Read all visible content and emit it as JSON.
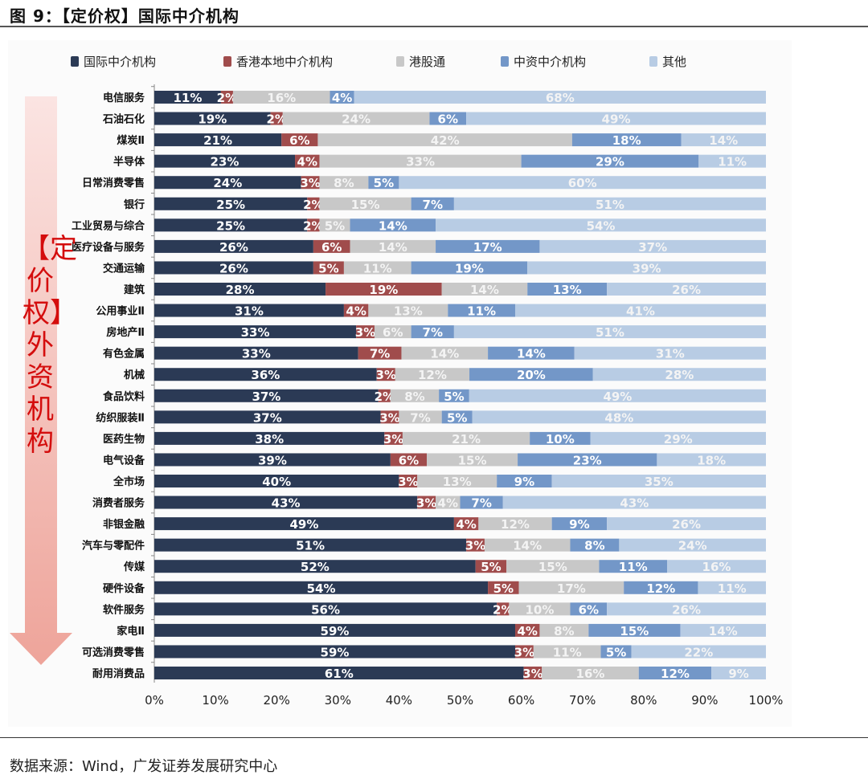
{
  "header": {
    "title": "图 9：【定价权】国际中介机构"
  },
  "side_label": "【定价权】外资机构",
  "footer": {
    "source": "数据来源：Wind，广发证券发展研究中心"
  },
  "chart_data": {
    "type": "bar",
    "orientation": "horizontal",
    "stacked": true,
    "legend_position": "top",
    "xlim": [
      0,
      100
    ],
    "x_ticks": [
      "0%",
      "10%",
      "20%",
      "30%",
      "40%",
      "50%",
      "60%",
      "70%",
      "80%",
      "90%",
      "100%"
    ],
    "categories": [
      "电信服务",
      "石油石化",
      "煤炭Ⅱ",
      "半导体",
      "日常消费零售",
      "银行",
      "工业贸易与综合",
      "医疗设备与服务",
      "交通运输",
      "建筑",
      "公用事业Ⅱ",
      "房地产Ⅱ",
      "有色金属",
      "机械",
      "食品饮料",
      "纺织服装Ⅱ",
      "医药生物",
      "电气设备",
      "全市场",
      "消费者服务",
      "非银金融",
      "汽车与零配件",
      "传媒",
      "硬件设备",
      "软件服务",
      "家电Ⅱ",
      "可选消费零售",
      "耐用消费品"
    ],
    "series": [
      {
        "name": "国际中介机构",
        "color": "#2b3a55",
        "values": [
          11,
          19,
          21,
          23,
          24,
          25,
          25,
          26,
          26,
          28,
          31,
          33,
          33,
          36,
          37,
          37,
          38,
          39,
          40,
          43,
          49,
          51,
          52,
          54,
          56,
          59,
          59,
          61
        ]
      },
      {
        "name": "香港本地中介机构",
        "color": "#a04c4c",
        "values": [
          2,
          2,
          6,
          4,
          3,
          2,
          2,
          6,
          5,
          19,
          4,
          3,
          7,
          3,
          2,
          3,
          3,
          6,
          3,
          3,
          4,
          3,
          5,
          5,
          2,
          4,
          3,
          3
        ]
      },
      {
        "name": "港股通",
        "color": "#c8c8c8",
        "values": [
          16,
          24,
          42,
          33,
          8,
          15,
          5,
          14,
          11,
          14,
          13,
          6,
          14,
          12,
          8,
          7,
          21,
          15,
          13,
          4,
          12,
          14,
          15,
          17,
          10,
          8,
          11,
          16
        ]
      },
      {
        "name": "中资中介机构",
        "color": "#7397c8",
        "values": [
          4,
          6,
          18,
          29,
          5,
          7,
          14,
          17,
          19,
          13,
          11,
          7,
          14,
          20,
          5,
          5,
          10,
          23,
          9,
          7,
          9,
          8,
          11,
          12,
          6,
          15,
          5,
          12
        ]
      },
      {
        "name": "其他",
        "color": "#b8cce4",
        "values": [
          68,
          49,
          14,
          11,
          60,
          51,
          54,
          37,
          39,
          26,
          41,
          51,
          31,
          28,
          49,
          48,
          29,
          18,
          35,
          43,
          26,
          24,
          16,
          11,
          26,
          14,
          22,
          9
        ]
      }
    ]
  }
}
